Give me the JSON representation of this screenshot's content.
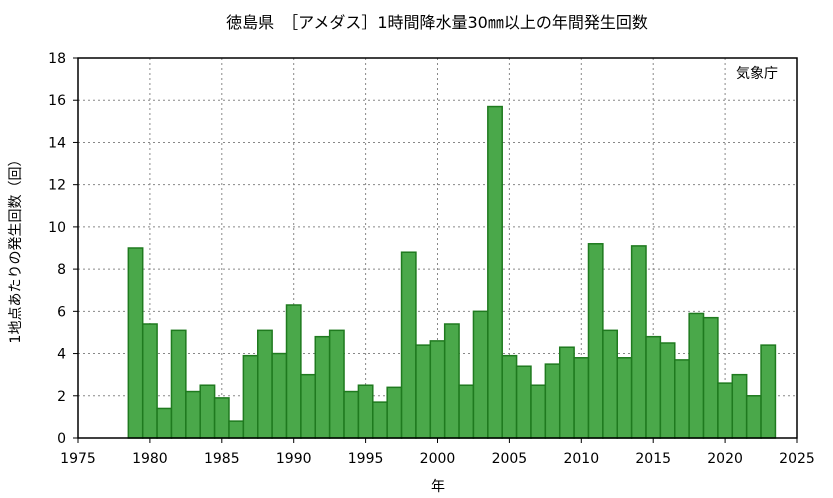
{
  "chart_data": {
    "type": "bar",
    "title": "徳島県　［アメダス］1時間降水量30㎜以上の年間発生回数",
    "xlabel": "年",
    "ylabel": "1地点あたりの発生回数（回）",
    "credit": "気象庁",
    "xlim": [
      1975,
      2025
    ],
    "ylim": [
      0,
      18
    ],
    "x_ticks": [
      1975,
      1980,
      1985,
      1990,
      1995,
      2000,
      2005,
      2010,
      2015,
      2020,
      2025
    ],
    "y_ticks": [
      0,
      2,
      4,
      6,
      8,
      10,
      12,
      14,
      16,
      18
    ],
    "grid": true,
    "bar_color": "#4aa84a",
    "bar_edge_color": "#1f7a1f",
    "categories": [
      1979,
      1980,
      1981,
      1982,
      1983,
      1984,
      1985,
      1986,
      1987,
      1988,
      1989,
      1990,
      1991,
      1992,
      1993,
      1994,
      1995,
      1996,
      1997,
      1998,
      1999,
      2000,
      2001,
      2002,
      2003,
      2004,
      2005,
      2006,
      2007,
      2008,
      2009,
      2010,
      2011,
      2012,
      2013,
      2014,
      2015,
      2016,
      2017,
      2018,
      2019,
      2020,
      2021,
      2022,
      2023
    ],
    "values": [
      9.0,
      5.4,
      1.4,
      5.1,
      2.2,
      2.5,
      1.9,
      0.8,
      3.9,
      5.1,
      4.0,
      6.3,
      3.0,
      4.8,
      5.1,
      2.2,
      2.5,
      1.7,
      2.4,
      8.8,
      4.4,
      4.6,
      5.4,
      2.5,
      6.0,
      15.7,
      3.9,
      3.4,
      2.5,
      3.5,
      4.3,
      3.8,
      9.2,
      5.1,
      3.8,
      9.1,
      4.8,
      4.5,
      3.7,
      5.9,
      5.7,
      2.6,
      3.0,
      2.0,
      4.4
    ]
  }
}
